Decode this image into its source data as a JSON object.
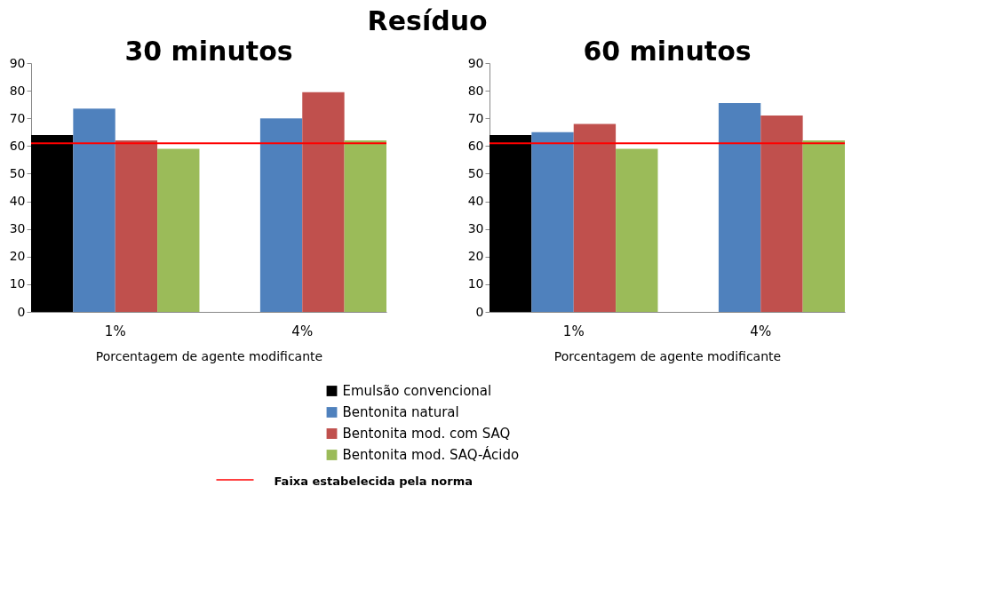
{
  "chart_data": [
    {
      "type": "bar",
      "title": "30 minutos",
      "annotations": [
        "Resíduo"
      ],
      "xlabel": "Porcentagem de agente modificante",
      "categories": [
        "1%",
        "4%"
      ],
      "series": [
        {
          "name": "Emulsão convencional",
          "color": "#000000",
          "values": [
            64,
            null
          ]
        },
        {
          "name": "Bentonita natural",
          "color": "#4f81bd",
          "values": [
            73.5,
            70
          ]
        },
        {
          "name": "Bentonita mod. com SAQ",
          "color": "#c0504d",
          "values": [
            62,
            79.5
          ]
        },
        {
          "name": "Bentonita mod. SAQ-Ácido",
          "color": "#9bbb59",
          "values": [
            59,
            62
          ]
        }
      ],
      "ylim": [
        0,
        90
      ],
      "yticks": [
        0,
        10,
        20,
        30,
        40,
        50,
        60,
        70,
        80,
        90
      ],
      "grid": false,
      "legend": "bottom",
      "ref_lines": [
        {
          "axis": "y",
          "value": 61,
          "label": "Faixa estabelecida pela norma",
          "color": "#ff0000"
        }
      ]
    },
    {
      "type": "bar",
      "title": "60 minutos",
      "xlabel": "Porcentagem de agente modificante",
      "categories": [
        "1%",
        "4%"
      ],
      "series": [
        {
          "name": "Emulsão convencional",
          "color": "#000000",
          "values": [
            64,
            null
          ]
        },
        {
          "name": "Bentonita natural",
          "color": "#4f81bd",
          "values": [
            65,
            75.5
          ]
        },
        {
          "name": "Bentonita mod. com SAQ",
          "color": "#c0504d",
          "values": [
            68,
            71
          ]
        },
        {
          "name": "Bentonita mod. SAQ-Ácido",
          "color": "#9bbb59",
          "values": [
            59,
            62
          ]
        }
      ],
      "ylim": [
        0,
        90
      ],
      "yticks": [
        0,
        10,
        20,
        30,
        40,
        50,
        60,
        70,
        80,
        90
      ],
      "grid": false,
      "ref_lines": [
        {
          "axis": "y",
          "value": 61,
          "color": "#ff0000"
        }
      ]
    }
  ]
}
